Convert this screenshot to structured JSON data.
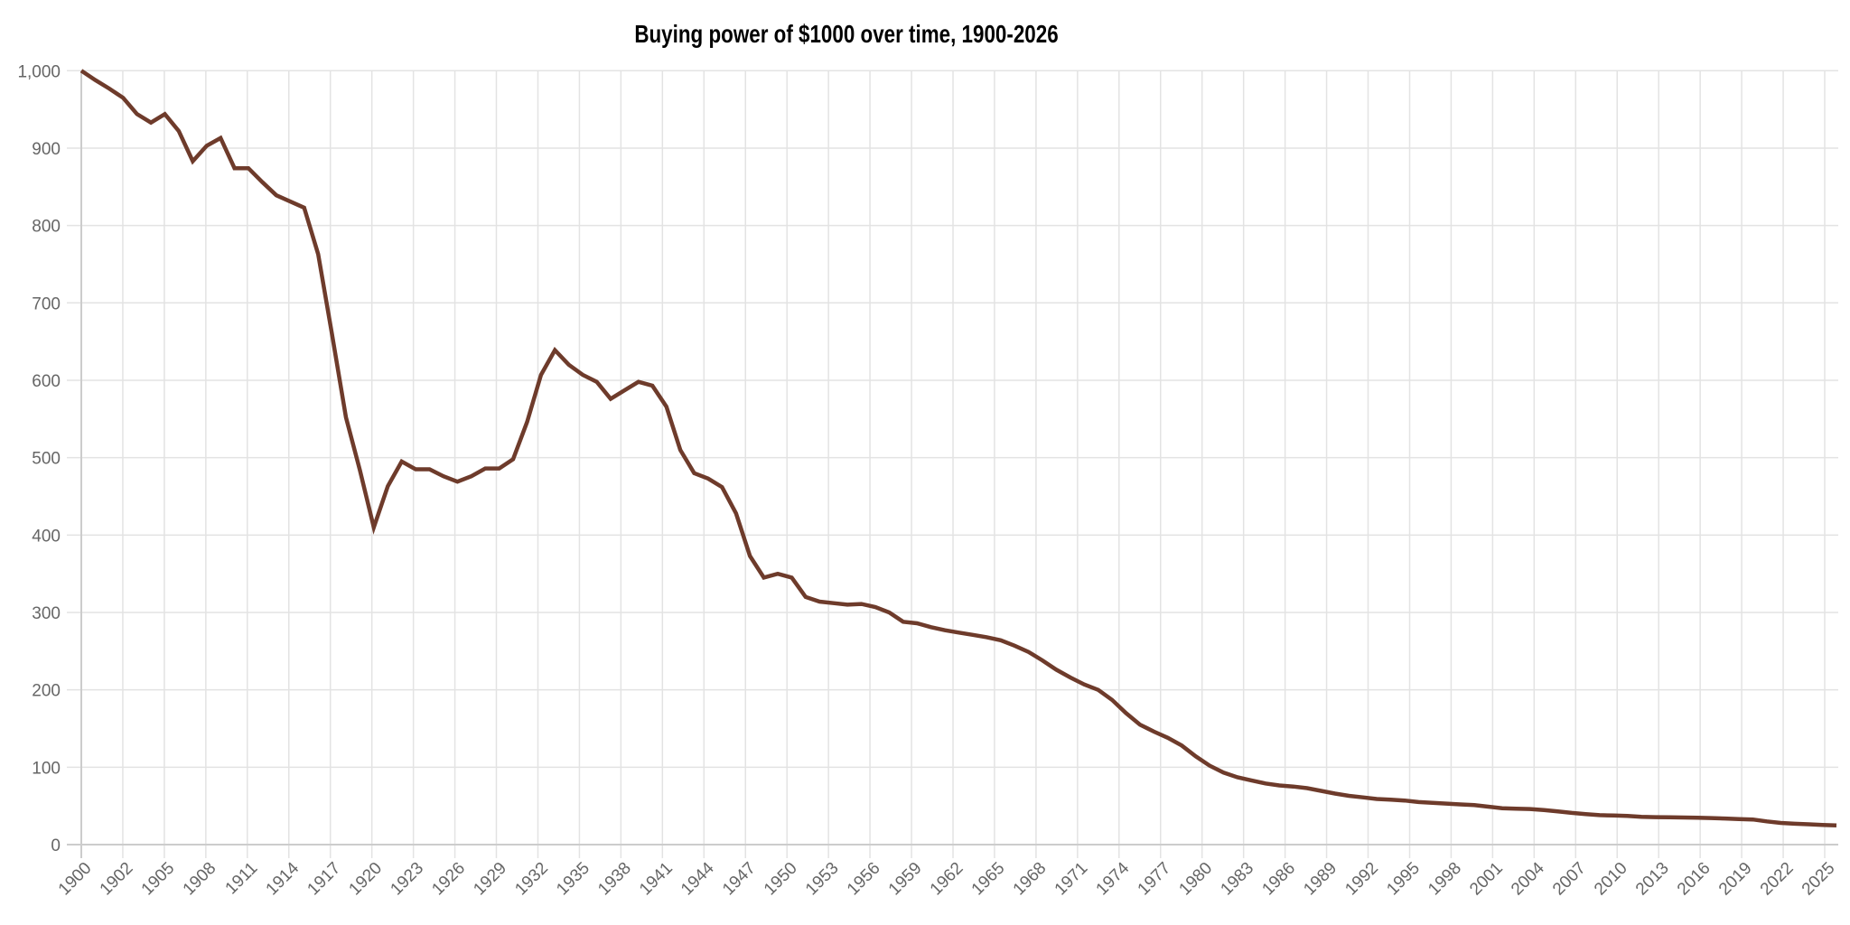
{
  "chart_data": {
    "type": "line",
    "title": "Buying power of $1000 over time, 1900-2026",
    "xlabel": "",
    "ylabel": "",
    "x_start": 1900,
    "x_end": 2026,
    "ylim": [
      0,
      1000
    ],
    "grid": true,
    "legend": "none",
    "line_color": "#6e3b2b",
    "y_ticks": [
      "0",
      "100",
      "200",
      "300",
      "400",
      "500",
      "600",
      "700",
      "800",
      "900",
      "1,000"
    ],
    "x_ticks": [
      "1900",
      "1902",
      "1905",
      "1908",
      "1911",
      "1914",
      "1917",
      "1920",
      "1923",
      "1926",
      "1929",
      "1932",
      "1935",
      "1938",
      "1941",
      "1944",
      "1947",
      "1950",
      "1953",
      "1956",
      "1959",
      "1962",
      "1965",
      "1968",
      "1971",
      "1974",
      "1977",
      "1980",
      "1983",
      "1986",
      "1989",
      "1992",
      "1995",
      "1998",
      "2001",
      "2004",
      "2007",
      "2010",
      "2013",
      "2016",
      "2019",
      "2022",
      "2025"
    ],
    "series": [
      {
        "name": "Buying power of $1000",
        "values": [
          1000,
          988,
          977,
          965,
          944,
          933,
          944,
          922,
          883,
          903,
          913,
          874,
          874,
          856,
          839,
          831,
          823,
          763,
          659,
          552,
          484,
          410,
          463,
          495,
          485,
          485,
          476,
          469,
          476,
          486,
          486,
          498,
          546,
          607,
          639,
          620,
          607,
          598,
          576,
          587,
          598,
          593,
          566,
          510,
          480,
          473,
          462,
          428,
          373,
          345,
          350,
          345,
          320,
          314,
          312,
          310,
          311,
          307,
          300,
          288,
          286,
          281,
          277,
          274,
          271,
          268,
          264,
          257,
          249,
          238,
          226,
          216,
          207,
          200,
          187,
          170,
          155,
          146,
          138,
          128,
          114,
          102,
          93,
          87,
          83,
          79,
          76.5,
          75,
          73,
          69.5,
          66,
          63,
          61,
          59,
          58,
          57,
          55,
          54,
          53,
          52,
          51,
          49,
          47,
          46.5,
          46,
          44.6,
          43,
          41,
          39.5,
          38,
          37.6,
          37,
          36,
          35.5,
          35.3,
          35,
          34.7,
          34.3,
          33.7,
          33,
          32.5,
          30,
          28,
          27,
          26.3,
          25.5,
          24.8
        ]
      }
    ]
  }
}
